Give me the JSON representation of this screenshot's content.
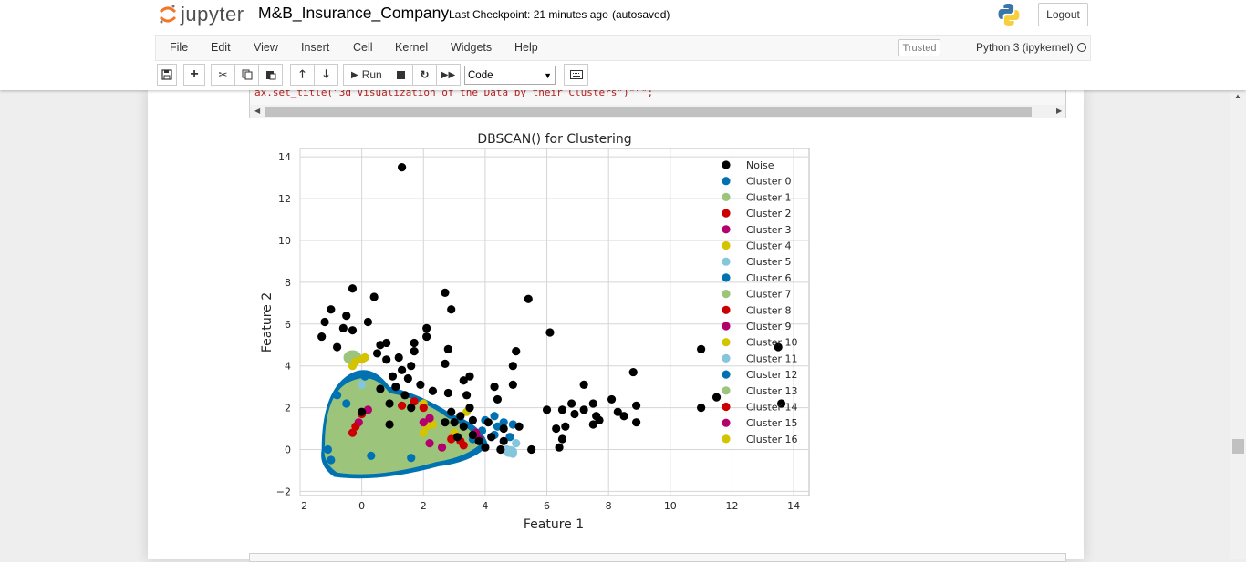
{
  "header": {
    "logo_text": "jupyter",
    "notebook_name": "M&B_Insurance_Company",
    "checkpoint": "Last Checkpoint: 21 minutes ago",
    "autosave": "(autosaved)",
    "logout_label": "Logout"
  },
  "menu": {
    "items": [
      "File",
      "Edit",
      "View",
      "Insert",
      "Cell",
      "Kernel",
      "Widgets",
      "Help"
    ],
    "trusted": "Trusted",
    "kernel": "Python 3 (ipykernel)"
  },
  "toolbar": {
    "run_label": "Run",
    "cell_type": "Code",
    "icons": [
      "save-icon",
      "plus-icon",
      "cut-icon",
      "copy-icon",
      "paste-icon",
      "arrow-up-icon",
      "arrow-down-icon",
      "run-icon",
      "stop-icon",
      "restart-icon",
      "fast-forward-icon",
      "keyboard-icon"
    ]
  },
  "code": {
    "visible_line": "ax.set_title(\"3d Visualization of the Data by their Clusters\")\"\"\";"
  },
  "chart_data": {
    "type": "scatter",
    "title": "DBSCAN() for Clustering",
    "xlabel": "Feature 1",
    "ylabel": "Feature 2",
    "xlim": [
      -2,
      14.5
    ],
    "ylim": [
      -2.2,
      14.4
    ],
    "xticks": [
      "−2",
      "0",
      "2",
      "4",
      "6",
      "8",
      "10",
      "12",
      "14"
    ],
    "yticks": [
      "−2",
      "0",
      "2",
      "4",
      "6",
      "8",
      "10",
      "12",
      "14"
    ],
    "grid": true,
    "legend_position": "upper right",
    "colors": {
      "noise": "#000000",
      "c0": "#0072b2",
      "c1": "#9dc47b",
      "c2": "#cc0000",
      "c3": "#b4006e",
      "c4": "#d4c400",
      "c5": "#86c6dc"
    },
    "legend": [
      {
        "name": "Noise",
        "color": "#000000"
      },
      {
        "name": "Cluster 0",
        "color": "#0072b2"
      },
      {
        "name": "Cluster 1",
        "color": "#9dc47b"
      },
      {
        "name": "Cluster 2",
        "color": "#cc0000"
      },
      {
        "name": "Cluster 3",
        "color": "#b4006e"
      },
      {
        "name": "Cluster 4",
        "color": "#d4c400"
      },
      {
        "name": "Cluster 5",
        "color": "#86c6dc"
      },
      {
        "name": "Cluster 6",
        "color": "#0072b2"
      },
      {
        "name": "Cluster 7",
        "color": "#9dc47b"
      },
      {
        "name": "Cluster 8",
        "color": "#cc0000"
      },
      {
        "name": "Cluster 9",
        "color": "#b4006e"
      },
      {
        "name": "Cluster 10",
        "color": "#d4c400"
      },
      {
        "name": "Cluster 11",
        "color": "#86c6dc"
      },
      {
        "name": "Cluster 12",
        "color": "#0072b2"
      },
      {
        "name": "Cluster 13",
        "color": "#9dc47b"
      },
      {
        "name": "Cluster 14",
        "color": "#cc0000"
      },
      {
        "name": "Cluster 15",
        "color": "#b4006e"
      },
      {
        "name": "Cluster 16",
        "color": "#d4c400"
      }
    ],
    "noise_points": [
      [
        1.3,
        13.5
      ],
      [
        -0.3,
        7.7
      ],
      [
        0.4,
        7.3
      ],
      [
        2.7,
        7.5
      ],
      [
        2.9,
        6.7
      ],
      [
        5.4,
        7.2
      ],
      [
        -1.0,
        6.7
      ],
      [
        -1.2,
        6.1
      ],
      [
        -0.5,
        6.4
      ],
      [
        0.2,
        6.1
      ],
      [
        -0.6,
        5.8
      ],
      [
        -0.3,
        5.7
      ],
      [
        6.1,
        5.6
      ],
      [
        2.1,
        5.8
      ],
      [
        2.1,
        5.4
      ],
      [
        -1.3,
        5.4
      ],
      [
        1.7,
        5.1
      ],
      [
        0.8,
        5.1
      ],
      [
        0.6,
        5.0
      ],
      [
        -0.8,
        4.9
      ],
      [
        1.7,
        4.7
      ],
      [
        2.8,
        4.8
      ],
      [
        5.0,
        4.7
      ],
      [
        0.5,
        4.6
      ],
      [
        0.8,
        4.3
      ],
      [
        1.2,
        4.4
      ],
      [
        2.7,
        4.1
      ],
      [
        4.9,
        4.0
      ],
      [
        11.0,
        4.8
      ],
      [
        13.5,
        4.9
      ],
      [
        8.8,
        3.7
      ],
      [
        1.6,
        4.0
      ],
      [
        1.3,
        3.8
      ],
      [
        1.0,
        3.5
      ],
      [
        1.5,
        3.4
      ],
      [
        3.3,
        3.3
      ],
      [
        3.5,
        3.5
      ],
      [
        4.9,
        3.1
      ],
      [
        4.3,
        3.0
      ],
      [
        7.2,
        3.1
      ],
      [
        1.9,
        3.1
      ],
      [
        1.1,
        3.0
      ],
      [
        0.6,
        2.9
      ],
      [
        2.3,
        2.8
      ],
      [
        1.4,
        2.6
      ],
      [
        0.9,
        2.2
      ],
      [
        2.8,
        2.7
      ],
      [
        3.4,
        2.6
      ],
      [
        4.4,
        2.4
      ],
      [
        8.1,
        2.4
      ],
      [
        6.8,
        2.2
      ],
      [
        7.5,
        2.2
      ],
      [
        8.9,
        2.1
      ],
      [
        11.5,
        2.5
      ],
      [
        13.6,
        2.2
      ],
      [
        11.0,
        2.0
      ],
      [
        6.0,
        1.9
      ],
      [
        6.5,
        1.9
      ],
      [
        6.9,
        1.7
      ],
      [
        7.2,
        1.9
      ],
      [
        8.3,
        1.8
      ],
      [
        7.6,
        1.6
      ],
      [
        7.7,
        1.4
      ],
      [
        8.5,
        1.6
      ],
      [
        3.5,
        2.0
      ],
      [
        2.9,
        1.8
      ],
      [
        3.2,
        1.6
      ],
      [
        3.0,
        1.3
      ],
      [
        3.6,
        1.4
      ],
      [
        2.7,
        1.3
      ],
      [
        3.3,
        1.1
      ],
      [
        4.1,
        1.3
      ],
      [
        4.6,
        1.0
      ],
      [
        5.1,
        1.1
      ],
      [
        6.3,
        1.0
      ],
      [
        6.6,
        1.1
      ],
      [
        7.5,
        1.2
      ],
      [
        8.9,
        1.3
      ],
      [
        3.6,
        0.7
      ],
      [
        3.1,
        0.6
      ],
      [
        4.2,
        0.6
      ],
      [
        3.8,
        0.4
      ],
      [
        4.6,
        0.4
      ],
      [
        4.0,
        0.1
      ],
      [
        4.5,
        0.0
      ],
      [
        5.5,
        0.0
      ],
      [
        6.5,
        0.5
      ],
      [
        6.4,
        0.1
      ],
      [
        0.9,
        1.2
      ],
      [
        1.6,
        2.0
      ],
      [
        0.0,
        1.8
      ]
    ],
    "c0_points": [
      [
        4.3,
        1.6
      ],
      [
        4.0,
        1.4
      ],
      [
        4.6,
        1.3
      ],
      [
        4.9,
        1.2
      ],
      [
        3.9,
        0.9
      ],
      [
        3.6,
        0.5
      ],
      [
        4.3,
        0.7
      ],
      [
        4.8,
        0.6
      ],
      [
        4.4,
        1.1
      ],
      [
        -0.8,
        2.6
      ],
      [
        0.1,
        3.5
      ],
      [
        -0.5,
        2.2
      ],
      [
        -1.1,
        0.0
      ],
      [
        -1.0,
        -0.5
      ],
      [
        0.3,
        -0.3
      ],
      [
        1.6,
        -0.4
      ]
    ],
    "c2_points": [
      [
        -0.3,
        0.8
      ],
      [
        -0.2,
        1.1
      ],
      [
        0.0,
        1.7
      ],
      [
        1.3,
        2.1
      ],
      [
        1.7,
        2.3
      ],
      [
        2.0,
        2.0
      ],
      [
        3.2,
        0.4
      ],
      [
        3.3,
        0.2
      ],
      [
        2.9,
        0.5
      ]
    ],
    "c3_points": [
      [
        0.2,
        1.9
      ],
      [
        -0.1,
        1.3
      ],
      [
        2.2,
        1.5
      ],
      [
        2.0,
        1.3
      ],
      [
        3.8,
        0.5
      ],
      [
        3.7,
        0.8
      ],
      [
        2.2,
        0.3
      ],
      [
        2.6,
        0.1
      ]
    ],
    "c4_points": [
      [
        0.0,
        4.3
      ],
      [
        -0.2,
        4.2
      ],
      [
        0.1,
        4.4
      ],
      [
        -0.3,
        4.0
      ],
      [
        2.0,
        2.2
      ],
      [
        2.1,
        1.1
      ],
      [
        2.3,
        1.2
      ],
      [
        2.0,
        0.8
      ],
      [
        3.4,
        1.8
      ],
      [
        3.0,
        0.8
      ]
    ],
    "c5_points": [
      [
        4.9,
        -0.2
      ],
      [
        4.7,
        0.0
      ],
      [
        5.0,
        0.3
      ],
      [
        4.8,
        -0.1
      ],
      [
        0.0,
        3.1
      ]
    ]
  }
}
